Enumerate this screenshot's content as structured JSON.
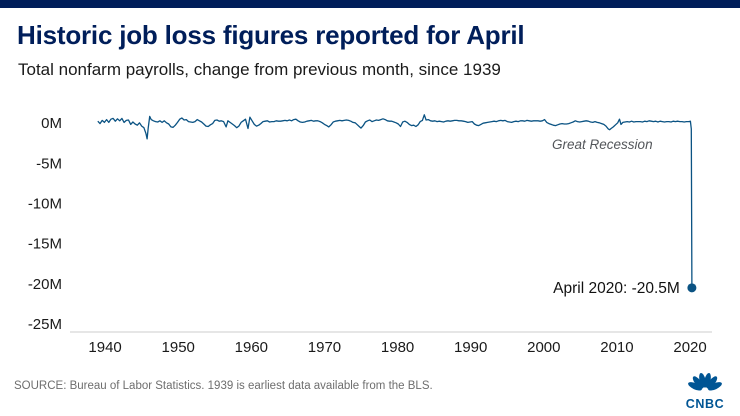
{
  "page": {
    "title": "Historic job loss figures reported for April",
    "subtitle": "Total nonfarm payrolls, change from previous month, since 1939",
    "source": "SOURCE: Bureau of Labor Statistics. 1939 is earliest data available from the BLS.",
    "brand": "CNBC"
  },
  "colors": {
    "accent_bar": "#001E5A",
    "title": "#001E5A",
    "line": "#0B5383",
    "annotation_gray": "#53565A",
    "annotation_dark": "#111111",
    "axis": "#CCCCCC",
    "tick_text": "#1A1A1A",
    "source_text": "#6E6E6E",
    "brand_blue": "#005594"
  },
  "chart_data": {
    "type": "line",
    "title": "Historic job loss figures reported for April",
    "subtitle": "Total nonfarm payrolls, change from previous month, since 1939",
    "xlabel": "",
    "ylabel": "",
    "unit": "millions of jobs, change from previous month",
    "xlim": [
      1935.2,
      2023
    ],
    "ylim": [
      -26,
      1.4
    ],
    "grid": false,
    "x_ticks": [
      {
        "v": 1940,
        "label": "1940"
      },
      {
        "v": 1950,
        "label": "1950"
      },
      {
        "v": 1960,
        "label": "1960"
      },
      {
        "v": 1970,
        "label": "1970"
      },
      {
        "v": 1980,
        "label": "1980"
      },
      {
        "v": 1990,
        "label": "1990"
      },
      {
        "v": 2000,
        "label": "2000"
      },
      {
        "v": 2010,
        "label": "2010"
      },
      {
        "v": 2020,
        "label": "2020"
      }
    ],
    "y_ticks": [
      {
        "v": 0,
        "label": "0M"
      },
      {
        "v": -5,
        "label": "-5M"
      },
      {
        "v": -10,
        "label": "-10M"
      },
      {
        "v": -15,
        "label": "-15M"
      },
      {
        "v": -20,
        "label": "-20M"
      },
      {
        "v": -25,
        "label": "-25M"
      }
    ],
    "annotations": [
      {
        "text": "Great Recession",
        "x": 2008,
        "y": -2.6,
        "anchor": "middle",
        "style": "italic",
        "color": "#53565A",
        "size": 13.5
      },
      {
        "text": "April 2020: -20.5M",
        "x": 2018.6,
        "y": -20.5,
        "anchor": "end",
        "style": "normal",
        "color": "#111111",
        "size": 15.5
      }
    ],
    "end_point": {
      "x": 2020.25,
      "y": -20.5,
      "label": "April 2020: -20.5M"
    },
    "series": [
      {
        "name": "Monthly change in total nonfarm payrolls (millions)",
        "points": [
          [
            1939,
            0.25
          ],
          [
            1939.3,
            -0.05
          ],
          [
            1939.6,
            0.35
          ],
          [
            1939.9,
            0.1
          ],
          [
            1940.2,
            0.45
          ],
          [
            1940.5,
            0.1
          ],
          [
            1940.8,
            0.5
          ],
          [
            1941.1,
            0.6
          ],
          [
            1941.4,
            0.25
          ],
          [
            1941.7,
            0.55
          ],
          [
            1942,
            0.3
          ],
          [
            1942.3,
            0.6
          ],
          [
            1942.6,
            0.1
          ],
          [
            1942.9,
            0.35
          ],
          [
            1943.2,
            0.4
          ],
          [
            1943.5,
            -0.15
          ],
          [
            1943.8,
            0.15
          ],
          [
            1944.1,
            -0.1
          ],
          [
            1944.4,
            -0.25
          ],
          [
            1944.7,
            0.05
          ],
          [
            1945,
            -0.35
          ],
          [
            1945.3,
            -0.55
          ],
          [
            1945.6,
            -1.3
          ],
          [
            1945.75,
            -1.95
          ],
          [
            1945.9,
            -0.6
          ],
          [
            1946.1,
            0.85
          ],
          [
            1946.3,
            0.45
          ],
          [
            1946.6,
            0.3
          ],
          [
            1946.9,
            0.2
          ],
          [
            1947.2,
            0.15
          ],
          [
            1947.5,
            0.3
          ],
          [
            1947.8,
            0.1
          ],
          [
            1948.1,
            0.3
          ],
          [
            1948.4,
            0.05
          ],
          [
            1948.7,
            -0.1
          ],
          [
            1949,
            -0.45
          ],
          [
            1949.3,
            -0.5
          ],
          [
            1949.6,
            -0.25
          ],
          [
            1949.9,
            0.1
          ],
          [
            1950.2,
            0.5
          ],
          [
            1950.5,
            0.65
          ],
          [
            1950.8,
            0.4
          ],
          [
            1951.1,
            0.45
          ],
          [
            1951.4,
            0.2
          ],
          [
            1951.7,
            0.15
          ],
          [
            1952,
            0.1
          ],
          [
            1952.3,
            0.2
          ],
          [
            1952.6,
            0.45
          ],
          [
            1952.9,
            0.3
          ],
          [
            1953.2,
            0.15
          ],
          [
            1953.5,
            -0.1
          ],
          [
            1953.8,
            -0.35
          ],
          [
            1954.1,
            -0.4
          ],
          [
            1954.4,
            -0.2
          ],
          [
            1954.7,
            -0.05
          ],
          [
            1955,
            0.35
          ],
          [
            1955.3,
            0.4
          ],
          [
            1955.6,
            0.25
          ],
          [
            1955.9,
            0.3
          ],
          [
            1956.2,
            0.2
          ],
          [
            1956.55,
            -0.45
          ],
          [
            1956.8,
            0.3
          ],
          [
            1957.1,
            0.1
          ],
          [
            1957.4,
            -0.1
          ],
          [
            1957.7,
            -0.3
          ],
          [
            1958,
            -0.55
          ],
          [
            1958.3,
            -0.35
          ],
          [
            1958.6,
            0.1
          ],
          [
            1958.9,
            0.3
          ],
          [
            1959.2,
            0.5
          ],
          [
            1959.55,
            -0.65
          ],
          [
            1959.8,
            0.75
          ],
          [
            1960.1,
            0.3
          ],
          [
            1960.4,
            -0.15
          ],
          [
            1960.7,
            -0.35
          ],
          [
            1961,
            -0.25
          ],
          [
            1961.3,
            -0.05
          ],
          [
            1961.6,
            0.2
          ],
          [
            1961.9,
            0.25
          ],
          [
            1962.2,
            0.3
          ],
          [
            1962.5,
            0.15
          ],
          [
            1962.8,
            0.2
          ],
          [
            1963.1,
            0.2
          ],
          [
            1963.4,
            0.3
          ],
          [
            1963.7,
            0.25
          ],
          [
            1964,
            0.25
          ],
          [
            1964.3,
            0.3
          ],
          [
            1964.6,
            0.35
          ],
          [
            1964.9,
            0.3
          ],
          [
            1965.2,
            0.4
          ],
          [
            1965.5,
            0.3
          ],
          [
            1965.8,
            0.45
          ],
          [
            1966.1,
            0.5
          ],
          [
            1966.4,
            0.3
          ],
          [
            1966.7,
            0.15
          ],
          [
            1967,
            0.1
          ],
          [
            1967.3,
            0.15
          ],
          [
            1967.6,
            0.25
          ],
          [
            1967.9,
            0.3
          ],
          [
            1968.2,
            0.35
          ],
          [
            1968.5,
            0.25
          ],
          [
            1968.8,
            0.3
          ],
          [
            1969.1,
            0.3
          ],
          [
            1969.4,
            0.2
          ],
          [
            1969.7,
            0.05
          ],
          [
            1970,
            -0.15
          ],
          [
            1970.3,
            -0.3
          ],
          [
            1970.6,
            -0.45
          ],
          [
            1970.9,
            -0.2
          ],
          [
            1971.2,
            0.15
          ],
          [
            1971.5,
            0.25
          ],
          [
            1971.8,
            0.3
          ],
          [
            1972.1,
            0.35
          ],
          [
            1972.4,
            0.3
          ],
          [
            1972.7,
            0.35
          ],
          [
            1973,
            0.4
          ],
          [
            1973.3,
            0.35
          ],
          [
            1973.6,
            0.25
          ],
          [
            1973.9,
            0.1
          ],
          [
            1974.2,
            0.05
          ],
          [
            1974.5,
            -0.2
          ],
          [
            1974.8,
            -0.45
          ],
          [
            1975,
            -0.6
          ],
          [
            1975.3,
            -0.3
          ],
          [
            1975.6,
            0.15
          ],
          [
            1975.9,
            0.3
          ],
          [
            1976.2,
            0.4
          ],
          [
            1976.5,
            0.2
          ],
          [
            1976.8,
            0.3
          ],
          [
            1977.1,
            0.4
          ],
          [
            1977.4,
            0.35
          ],
          [
            1977.7,
            0.45
          ],
          [
            1978,
            0.55
          ],
          [
            1978.3,
            0.45
          ],
          [
            1978.6,
            0.3
          ],
          [
            1978.9,
            0.25
          ],
          [
            1979.2,
            0.25
          ],
          [
            1979.5,
            0.15
          ],
          [
            1979.8,
            0.05
          ],
          [
            1980.1,
            -0.1
          ],
          [
            1980.4,
            -0.4
          ],
          [
            1980.7,
            0.15
          ],
          [
            1981,
            0.25
          ],
          [
            1981.3,
            0.1
          ],
          [
            1981.6,
            -0.15
          ],
          [
            1981.9,
            -0.3
          ],
          [
            1982.2,
            -0.25
          ],
          [
            1982.5,
            -0.4
          ],
          [
            1982.8,
            -0.2
          ],
          [
            1983.1,
            0.2
          ],
          [
            1983.4,
            0.35
          ],
          [
            1983.65,
            1.05
          ],
          [
            1983.9,
            0.4
          ],
          [
            1984.2,
            0.45
          ],
          [
            1984.5,
            0.3
          ],
          [
            1984.8,
            0.25
          ],
          [
            1985.1,
            0.3
          ],
          [
            1985.4,
            0.2
          ],
          [
            1985.7,
            0.25
          ],
          [
            1986,
            0.2
          ],
          [
            1986.3,
            0.15
          ],
          [
            1986.6,
            0.25
          ],
          [
            1986.9,
            0.3
          ],
          [
            1987.2,
            0.25
          ],
          [
            1987.5,
            0.3
          ],
          [
            1987.8,
            0.35
          ],
          [
            1988.1,
            0.35
          ],
          [
            1988.4,
            0.3
          ],
          [
            1988.7,
            0.3
          ],
          [
            1989,
            0.25
          ],
          [
            1989.3,
            0.2
          ],
          [
            1989.6,
            0.1
          ],
          [
            1989.9,
            0.15
          ],
          [
            1990.2,
            0.2
          ],
          [
            1990.5,
            -0.1
          ],
          [
            1990.8,
            -0.25
          ],
          [
            1991.1,
            -0.3
          ],
          [
            1991.4,
            -0.15
          ],
          [
            1991.7,
            0
          ],
          [
            1992,
            0.05
          ],
          [
            1992.3,
            0.1
          ],
          [
            1992.6,
            0.15
          ],
          [
            1992.9,
            0.2
          ],
          [
            1993.2,
            0.25
          ],
          [
            1993.5,
            0.2
          ],
          [
            1993.8,
            0.3
          ],
          [
            1994.1,
            0.35
          ],
          [
            1994.4,
            0.3
          ],
          [
            1994.7,
            0.35
          ],
          [
            1995,
            0.2
          ],
          [
            1995.3,
            0.15
          ],
          [
            1995.6,
            0.1
          ],
          [
            1995.9,
            0.2
          ],
          [
            1996.2,
            0.25
          ],
          [
            1996.5,
            0.2
          ],
          [
            1996.8,
            0.3
          ],
          [
            1997.1,
            0.3
          ],
          [
            1997.4,
            0.25
          ],
          [
            1997.7,
            0.35
          ],
          [
            1998,
            0.3
          ],
          [
            1998.3,
            0.25
          ],
          [
            1998.6,
            0.3
          ],
          [
            1998.9,
            0.3
          ],
          [
            1999.2,
            0.3
          ],
          [
            1999.5,
            0.25
          ],
          [
            1999.8,
            0.3
          ],
          [
            2000.1,
            0.45
          ],
          [
            2000.4,
            0.1
          ],
          [
            2000.7,
            -0.05
          ],
          [
            2001,
            -0.15
          ],
          [
            2001.3,
            -0.25
          ],
          [
            2001.6,
            -0.3
          ],
          [
            2001.9,
            -0.2
          ],
          [
            2002.2,
            -0.1
          ],
          [
            2002.5,
            -0.05
          ],
          [
            2002.8,
            -0.1
          ],
          [
            2003.1,
            -0.1
          ],
          [
            2003.4,
            -0.05
          ],
          [
            2003.7,
            0.05
          ],
          [
            2004,
            0.15
          ],
          [
            2004.3,
            0.3
          ],
          [
            2004.6,
            0.2
          ],
          [
            2004.9,
            0.15
          ],
          [
            2005.2,
            0.2
          ],
          [
            2005.5,
            0.25
          ],
          [
            2005.8,
            0.3
          ],
          [
            2006.1,
            0.25
          ],
          [
            2006.4,
            0.15
          ],
          [
            2006.7,
            0.1
          ],
          [
            2007,
            0.2
          ],
          [
            2007.3,
            0.1
          ],
          [
            2007.6,
            0.05
          ],
          [
            2007.9,
            -0.05
          ],
          [
            2008.2,
            -0.15
          ],
          [
            2008.5,
            -0.35
          ],
          [
            2008.8,
            -0.7
          ],
          [
            2009,
            -0.8
          ],
          [
            2009.2,
            -0.65
          ],
          [
            2009.5,
            -0.45
          ],
          [
            2009.8,
            -0.2
          ],
          [
            2010.1,
            0.05
          ],
          [
            2010.35,
            0.5
          ],
          [
            2010.55,
            -0.15
          ],
          [
            2010.8,
            0.1
          ],
          [
            2011.1,
            0.15
          ],
          [
            2011.4,
            0.2
          ],
          [
            2011.7,
            0.15
          ],
          [
            2012,
            0.25
          ],
          [
            2012.3,
            0.15
          ],
          [
            2012.6,
            0.2
          ],
          [
            2012.9,
            0.2
          ],
          [
            2013.2,
            0.2
          ],
          [
            2013.5,
            0.15
          ],
          [
            2013.8,
            0.25
          ],
          [
            2014.1,
            0.2
          ],
          [
            2014.4,
            0.3
          ],
          [
            2014.7,
            0.25
          ],
          [
            2015,
            0.2
          ],
          [
            2015.3,
            0.25
          ],
          [
            2015.6,
            0.15
          ],
          [
            2015.9,
            0.25
          ],
          [
            2016.2,
            0.2
          ],
          [
            2016.5,
            0.15
          ],
          [
            2016.8,
            0.2
          ],
          [
            2017.1,
            0.2
          ],
          [
            2017.4,
            0.15
          ],
          [
            2017.7,
            0.25
          ],
          [
            2018,
            0.2
          ],
          [
            2018.3,
            0.25
          ],
          [
            2018.6,
            0.2
          ],
          [
            2018.9,
            0.2
          ],
          [
            2019.2,
            0.15
          ],
          [
            2019.5,
            0.2
          ],
          [
            2019.8,
            0.2
          ],
          [
            2020.05,
            0.25
          ],
          [
            2020.17,
            -0.7
          ],
          [
            2020.25,
            -20.5
          ]
        ]
      }
    ]
  }
}
